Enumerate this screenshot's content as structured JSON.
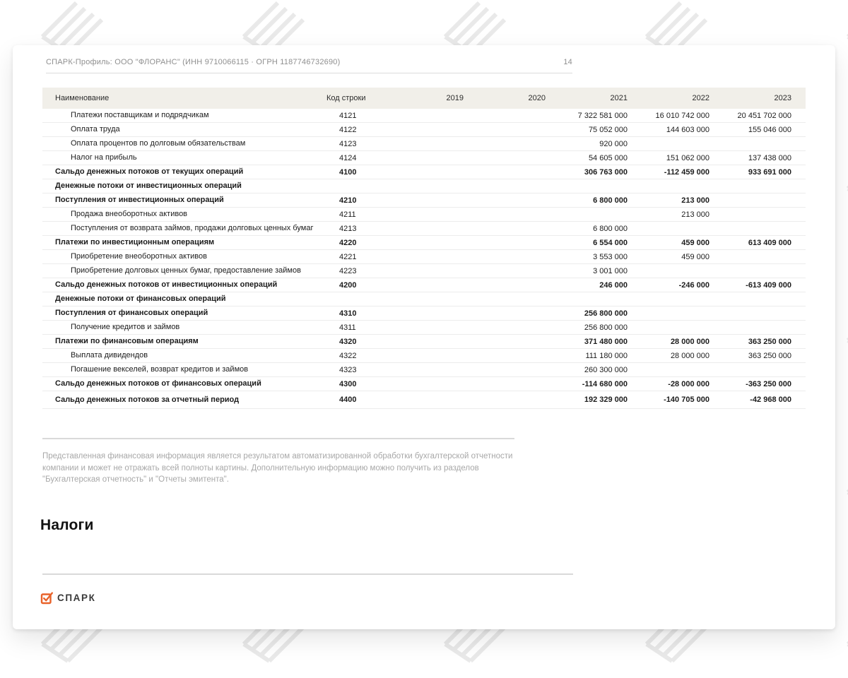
{
  "header": {
    "title": "СПАРК-Профиль: ООО \"ФЛОРАНС\" (ИНН 9710066115 · ОГРН 1187746732690)",
    "page_number": "14"
  },
  "table": {
    "columns": {
      "name": "Наименование",
      "code": "Код строки",
      "years": [
        "2019",
        "2020",
        "2021",
        "2022",
        "2023"
      ]
    },
    "rows": [
      {
        "name": "Платежи поставщикам и подрядчикам",
        "code": "4121",
        "style": "sub",
        "values": [
          "",
          "",
          "7 322 581 000",
          "16 010 742 000",
          "20 451 702 000"
        ]
      },
      {
        "name": "Оплата труда",
        "code": "4122",
        "style": "sub",
        "values": [
          "",
          "",
          "75 052 000",
          "144 603 000",
          "155 046 000"
        ]
      },
      {
        "name": "Оплата процентов по долговым обязательствам",
        "code": "4123",
        "style": "sub",
        "values": [
          "",
          "",
          "920 000",
          "",
          ""
        ]
      },
      {
        "name": "Налог на прибыль",
        "code": "4124",
        "style": "sub",
        "values": [
          "",
          "",
          "54 605 000",
          "151 062 000",
          "137 438 000"
        ]
      },
      {
        "name": "Сальдо денежных потоков от текущих операций",
        "code": "4100",
        "style": "bold",
        "values": [
          "",
          "",
          "306 763 000",
          "-112 459 000",
          "933 691 000"
        ]
      },
      {
        "name": "Денежные потоки от инвестиционных операций",
        "code": "",
        "style": "section",
        "values": [
          "",
          "",
          "",
          "",
          ""
        ]
      },
      {
        "name": "Поступления от инвестиционных операций",
        "code": "4210",
        "style": "bold",
        "values": [
          "",
          "",
          "6 800 000",
          "213 000",
          ""
        ]
      },
      {
        "name": "Продажа внеоборотных активов",
        "code": "4211",
        "style": "sub",
        "values": [
          "",
          "",
          "",
          "213 000",
          ""
        ]
      },
      {
        "name": "Поступления от возврата займов, продажи долговых ценных бумаг",
        "code": "4213",
        "style": "sub",
        "values": [
          "",
          "",
          "6 800 000",
          "",
          ""
        ]
      },
      {
        "name": "Платежи по инвестиционным операциям",
        "code": "4220",
        "style": "bold",
        "values": [
          "",
          "",
          "6 554 000",
          "459 000",
          "613 409 000"
        ]
      },
      {
        "name": "Приобретение внеоборотных активов",
        "code": "4221",
        "style": "sub",
        "values": [
          "",
          "",
          "3 553 000",
          "459 000",
          ""
        ]
      },
      {
        "name": "Приобретение долговых ценных бумаг, предоставление займов",
        "code": "4223",
        "style": "sub",
        "values": [
          "",
          "",
          "3 001 000",
          "",
          ""
        ]
      },
      {
        "name": "Сальдо денежных потоков от инвестиционных операций",
        "code": "4200",
        "style": "bold",
        "values": [
          "",
          "",
          "246 000",
          "-246 000",
          "-613 409 000"
        ]
      },
      {
        "name": "Денежные потоки от финансовых операций",
        "code": "",
        "style": "section",
        "values": [
          "",
          "",
          "",
          "",
          ""
        ]
      },
      {
        "name": "Поступления от финансовых операций",
        "code": "4310",
        "style": "bold",
        "values": [
          "",
          "",
          "256 800 000",
          "",
          ""
        ]
      },
      {
        "name": "Получение кредитов и займов",
        "code": "4311",
        "style": "sub",
        "values": [
          "",
          "",
          "256 800 000",
          "",
          ""
        ]
      },
      {
        "name": "Платежи по финансовым операциям",
        "code": "4320",
        "style": "bold",
        "values": [
          "",
          "",
          "371 480 000",
          "28 000 000",
          "363 250 000"
        ]
      },
      {
        "name": "Выплата дивидендов",
        "code": "4322",
        "style": "sub",
        "values": [
          "",
          "",
          "111 180 000",
          "28 000 000",
          "363 250 000"
        ]
      },
      {
        "name": "Погашение векселей, возврат кредитов и займов",
        "code": "4323",
        "style": "sub",
        "values": [
          "",
          "",
          "260 300 000",
          "",
          ""
        ]
      },
      {
        "name": "Сальдо денежных потоков от финансовых операций",
        "code": "4300",
        "style": "bold",
        "values": [
          "",
          "",
          "-114 680 000",
          "-28 000 000",
          "-363 250 000"
        ]
      },
      {
        "name": "Сальдо денежных потоков за отчетный период",
        "code": "4400",
        "style": "bold",
        "last": true,
        "values": [
          "",
          "",
          "192 329 000",
          "-140 705 000",
          "-42 968 000"
        ]
      }
    ]
  },
  "disclaimer": "Представленная финансовая информация является результатом автоматизированной обработки бухгалтерской отчетности компании и может не отражать всей полноты картины. Дополнительную информацию можно получить из разделов \"Бухгалтерская отчетность\" и \"Отчеты эмитента\".",
  "section_title": "Налоги",
  "logo": {
    "text": "СПАРК",
    "icon": "spark-checkbox-icon",
    "accent_color": "#e8622a"
  }
}
